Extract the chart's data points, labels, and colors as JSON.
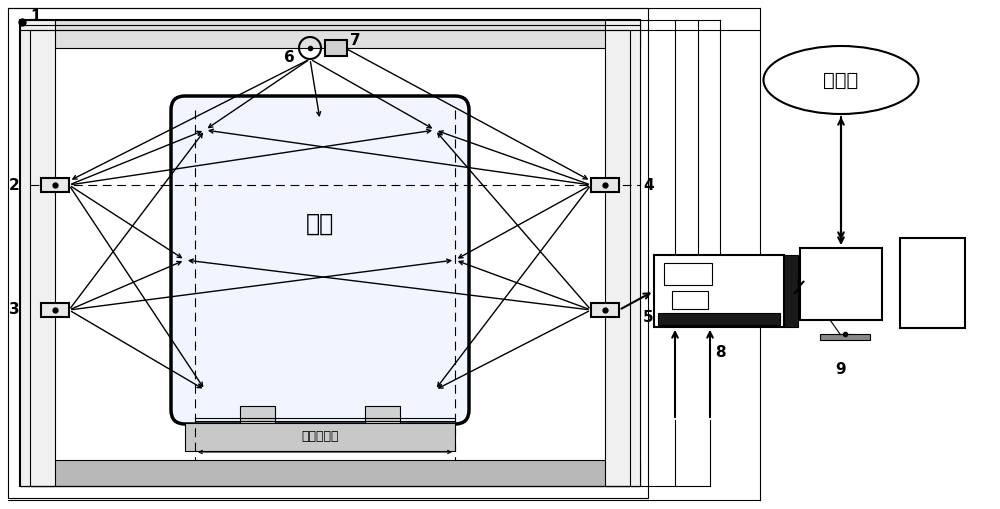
{
  "bg_color": "#ffffff",
  "lc": "#000000",
  "compartment_label": "车厂",
  "track_label": "铁轨及路基",
  "internet_label": "互联网",
  "fig_w": 10.0,
  "fig_h": 5.09
}
